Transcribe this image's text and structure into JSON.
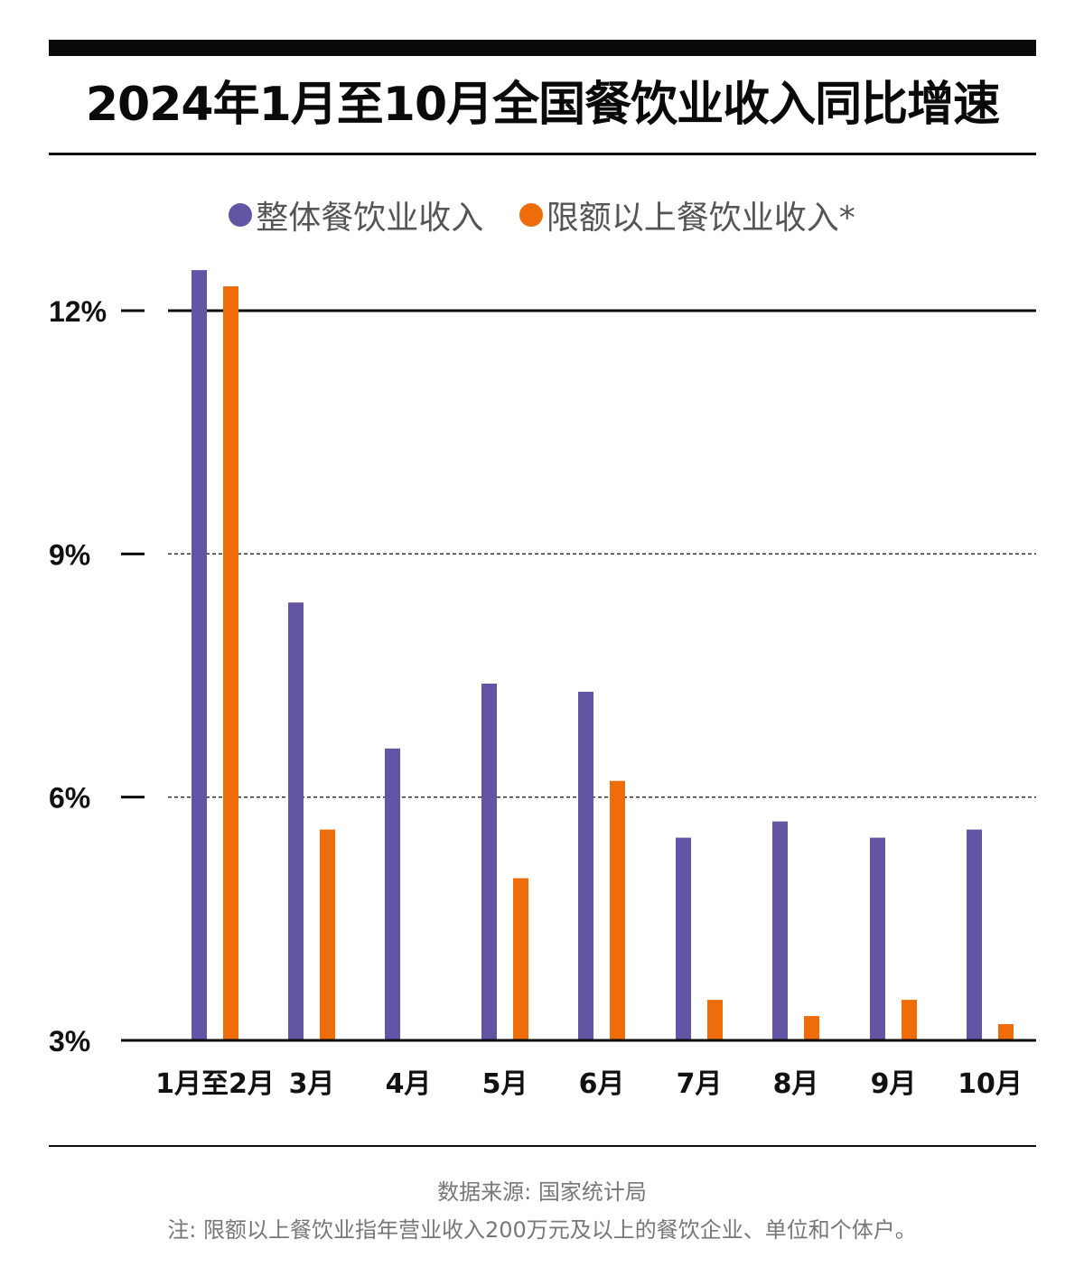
{
  "title": "2024年1月至10月全国餐饮业收入同比增速",
  "colors": {
    "overall": "#6355a4",
    "above_limit": "#ef6c0a"
  },
  "chart_data": {
    "type": "bar",
    "title": "2024年1月至10月全国餐饮业收入同比增速",
    "categories": [
      "1月至2月",
      "3月",
      "4月",
      "5月",
      "6月",
      "7月",
      "8月",
      "9月",
      "10月"
    ],
    "series": [
      {
        "name": "整体餐饮业收入",
        "color": "#6355a4",
        "values": [
          12.5,
          8.4,
          6.6,
          7.4,
          7.3,
          5.5,
          5.7,
          5.5,
          5.6
        ]
      },
      {
        "name": "限额以上餐饮业收入*",
        "color": "#ef6c0a",
        "values": [
          12.3,
          5.6,
          null,
          5.0,
          6.2,
          3.5,
          3.3,
          3.5,
          3.2
        ]
      }
    ],
    "y_ticks": [
      3,
      6,
      9,
      12
    ],
    "y_tick_labels": [
      "3%",
      "6%",
      "9%",
      "12%"
    ],
    "ylim": [
      3,
      12.5
    ],
    "grid": "dashed at 6% and 9%, solid at 12%",
    "legend": "top-center"
  },
  "legend": {
    "overall_label": "整体餐饮业收入",
    "above_limit_label": "限额以上餐饮业收入*"
  },
  "footer": {
    "source": "数据来源: 国家统计局",
    "note": "注: 限额以上餐饮业指年营业收入200万元及以上的餐饮企业、单位和个体户。"
  }
}
